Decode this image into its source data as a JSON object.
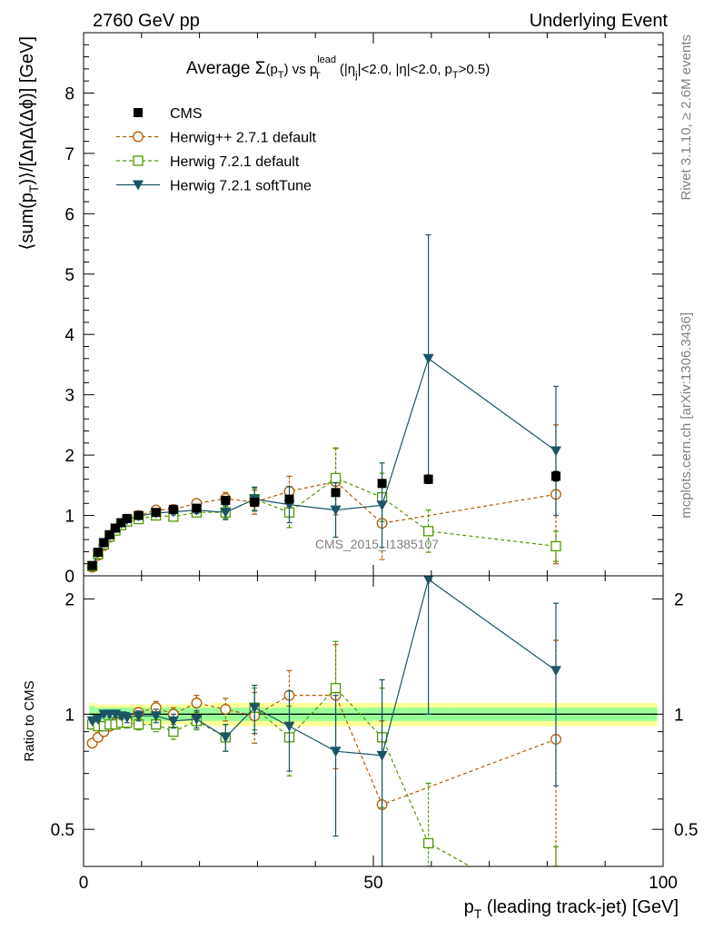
{
  "header": {
    "left": "2760 GeV pp",
    "right": "Underlying Event",
    "side_top": "Rivet 3.1.10, ≥ 2.6M events",
    "side_bottom": "mcplots.cern.ch [arXiv:1306.3436]",
    "watermark": "CMS_2015_I1385107"
  },
  "chart_data": [
    {
      "panel": "main",
      "type": "line",
      "title_parts": {
        "prefix": "Average ",
        "sigma": "Σ",
        "p": "(p",
        "p_sub": "T",
        "p_close": ")",
        "vs": " vs p",
        "lead_sup": "lead",
        "lead_sub": "T",
        "cuts1": " (|η",
        "cuts1_sub": "j",
        "cuts2": "|<2.0, |η|<2.0, p",
        "cuts2_sub": "T",
        "cuts3": ">0.5)"
      },
      "ylabel_parts": {
        "a": "⟨sum(p",
        "a_sub": "T",
        "b": ")⟩/[ΔηΔ(Δϕ)] [GeV]"
      },
      "xlim": [
        0,
        100
      ],
      "ylim": [
        0,
        9
      ],
      "yticks": [
        "0",
        "1",
        "2",
        "3",
        "4",
        "5",
        "6",
        "7",
        "8"
      ],
      "legend_position": "top-left",
      "series": [
        {
          "name": "CMS",
          "color": "#000000",
          "marker": "filled-square",
          "line": "none",
          "x": [
            1.5,
            2.5,
            3.5,
            4.5,
            5.5,
            6.5,
            7.5,
            9.5,
            12.5,
            15.5,
            19.5,
            24.5,
            29.5,
            35.5,
            43.5,
            51.5,
            59.5,
            81.5
          ],
          "y": [
            0.17,
            0.39,
            0.55,
            0.68,
            0.79,
            0.88,
            0.95,
            1.0,
            1.05,
            1.1,
            1.12,
            1.25,
            1.22,
            1.27,
            1.38,
            1.53,
            1.6,
            1.65
          ],
          "err": [
            0.01,
            0.01,
            0.01,
            0.01,
            0.01,
            0.01,
            0.01,
            0.01,
            0.01,
            0.02,
            0.02,
            0.03,
            0.03,
            0.04,
            0.05,
            0.06,
            0.07,
            0.08
          ]
        },
        {
          "name": "Herwig++ 2.7.1 default",
          "color": "#b35900",
          "marker": "open-circle",
          "line": "dashed",
          "x": [
            1.5,
            2.5,
            3.5,
            4.5,
            5.5,
            6.5,
            7.5,
            9.5,
            12.5,
            15.5,
            19.5,
            24.5,
            29.5,
            35.5,
            43.5,
            51.5,
            81.5
          ],
          "y": [
            0.14,
            0.34,
            0.5,
            0.64,
            0.76,
            0.85,
            0.92,
            1.0,
            1.09,
            1.1,
            1.2,
            1.28,
            1.22,
            1.4,
            1.56,
            0.87,
            1.35
          ],
          "err": [
            0.01,
            0.01,
            0.01,
            0.02,
            0.02,
            0.02,
            0.03,
            0.03,
            0.04,
            0.05,
            0.06,
            0.1,
            0.2,
            0.25,
            0.55,
            0.6,
            1.15
          ]
        },
        {
          "name": "Herwig 7.2.1 default",
          "color": "#4d9900",
          "marker": "open-square",
          "line": "dashed",
          "x": [
            1.5,
            2.5,
            3.5,
            4.5,
            5.5,
            6.5,
            7.5,
            9.5,
            12.5,
            15.5,
            19.5,
            24.5,
            29.5,
            35.5,
            43.5,
            51.5,
            59.5,
            81.5
          ],
          "y": [
            0.16,
            0.36,
            0.52,
            0.65,
            0.75,
            0.84,
            0.9,
            0.94,
            1.0,
            0.98,
            1.05,
            1.05,
            1.27,
            1.05,
            1.62,
            1.3,
            0.74,
            0.49
          ],
          "err": [
            0.01,
            0.01,
            0.01,
            0.02,
            0.02,
            0.02,
            0.03,
            0.03,
            0.04,
            0.05,
            0.06,
            0.1,
            0.18,
            0.25,
            0.5,
            0.4,
            0.35,
            0.25
          ]
        },
        {
          "name": "Herwig 7.2.1 softTune",
          "color": "#1a5566",
          "marker": "filled-triangle-down",
          "line": "solid",
          "x": [
            1.5,
            2.5,
            3.5,
            4.5,
            5.5,
            6.5,
            7.5,
            9.5,
            12.5,
            15.5,
            19.5,
            24.5,
            29.5,
            35.5,
            43.5,
            51.5,
            59.5,
            81.5
          ],
          "y": [
            0.16,
            0.38,
            0.55,
            0.68,
            0.79,
            0.87,
            0.93,
            0.99,
            1.04,
            1.06,
            1.09,
            1.05,
            1.27,
            1.18,
            1.09,
            1.17,
            3.6,
            2.07
          ],
          "err": [
            0.01,
            0.01,
            0.01,
            0.02,
            0.02,
            0.02,
            0.03,
            0.03,
            0.04,
            0.05,
            0.06,
            0.12,
            0.2,
            0.3,
            0.45,
            0.7,
            2.05,
            1.07
          ]
        }
      ]
    },
    {
      "panel": "ratio",
      "type": "line",
      "ylabel": "Ratio to CMS",
      "xlabel_parts": {
        "a": "p",
        "a_sub": "T",
        "b": " (leading track-jet) [GeV]"
      },
      "xlim": [
        0,
        100
      ],
      "ylim": [
        0.4,
        2.3
      ],
      "xticks": [
        "0",
        "50",
        "100"
      ],
      "yticks": [
        "0.5",
        "1",
        "2"
      ],
      "band_colors": {
        "inner": "#99ff99",
        "outer": "#ffff99"
      },
      "series": [
        {
          "name": "Herwig++ 2.7.1 default",
          "x": [
            1.5,
            2.5,
            3.5,
            4.5,
            5.5,
            6.5,
            7.5,
            9.5,
            12.5,
            15.5,
            19.5,
            24.5,
            29.5,
            35.5,
            43.5,
            51.5,
            81.5
          ],
          "y": [
            0.84,
            0.87,
            0.9,
            0.93,
            0.95,
            0.96,
            0.97,
            1.01,
            1.04,
            1.0,
            1.07,
            1.03,
            0.99,
            1.12,
            1.12,
            0.58,
            0.86
          ],
          "err": [
            0.01,
            0.01,
            0.01,
            0.02,
            0.02,
            0.02,
            0.03,
            0.03,
            0.04,
            0.04,
            0.05,
            0.07,
            0.15,
            0.18,
            0.4,
            0.38,
            0.7
          ]
        },
        {
          "name": "Herwig 7.2.1 default",
          "x": [
            1.5,
            2.5,
            3.5,
            4.5,
            5.5,
            6.5,
            7.5,
            9.5,
            12.5,
            15.5,
            19.5,
            24.5,
            29.5,
            35.5,
            43.5,
            51.5,
            59.5,
            81.5
          ],
          "y": [
            0.94,
            0.93,
            0.93,
            0.94,
            0.94,
            0.95,
            0.95,
            0.94,
            0.94,
            0.9,
            0.96,
            0.87,
            1.04,
            0.87,
            1.17,
            0.87,
            0.46,
            0.3
          ],
          "err": [
            0.01,
            0.01,
            0.01,
            0.02,
            0.02,
            0.02,
            0.03,
            0.03,
            0.04,
            0.04,
            0.05,
            0.07,
            0.13,
            0.18,
            0.38,
            0.3,
            0.2,
            0.15
          ]
        },
        {
          "name": "Herwig 7.2.1 softTune",
          "x": [
            1.5,
            2.5,
            3.5,
            4.5,
            5.5,
            6.5,
            7.5,
            9.5,
            12.5,
            15.5,
            19.5,
            24.5,
            29.5,
            35.5,
            43.5,
            51.5,
            59.5,
            81.5
          ],
          "y": [
            0.96,
            0.97,
            1.0,
            1.0,
            1.0,
            0.99,
            0.98,
            0.99,
            0.99,
            0.96,
            0.97,
            0.87,
            1.04,
            0.93,
            0.8,
            0.78,
            2.25,
            1.3
          ],
          "err": [
            0.01,
            0.01,
            0.01,
            0.02,
            0.02,
            0.02,
            0.03,
            0.03,
            0.04,
            0.04,
            0.05,
            0.07,
            0.15,
            0.22,
            0.32,
            0.45,
            1.25,
            0.65
          ]
        }
      ],
      "band": {
        "x": [
          1.0,
          2.0,
          3.0,
          4.0,
          5.0,
          6.0,
          7.0,
          8.0,
          11.0,
          14.0,
          17.0,
          22.0,
          27.0,
          32.0,
          39.0,
          48.0,
          55.0,
          64.0,
          99.0
        ],
        "inner": [
          0.05,
          0.04,
          0.04,
          0.04,
          0.04,
          0.04,
          0.04,
          0.04,
          0.04,
          0.04,
          0.04,
          0.04,
          0.04,
          0.04,
          0.04,
          0.04,
          0.04,
          0.04
        ],
        "outer": [
          0.07,
          0.06,
          0.06,
          0.06,
          0.06,
          0.06,
          0.06,
          0.06,
          0.06,
          0.06,
          0.06,
          0.07,
          0.07,
          0.07,
          0.07,
          0.07,
          0.07,
          0.07
        ]
      }
    }
  ]
}
